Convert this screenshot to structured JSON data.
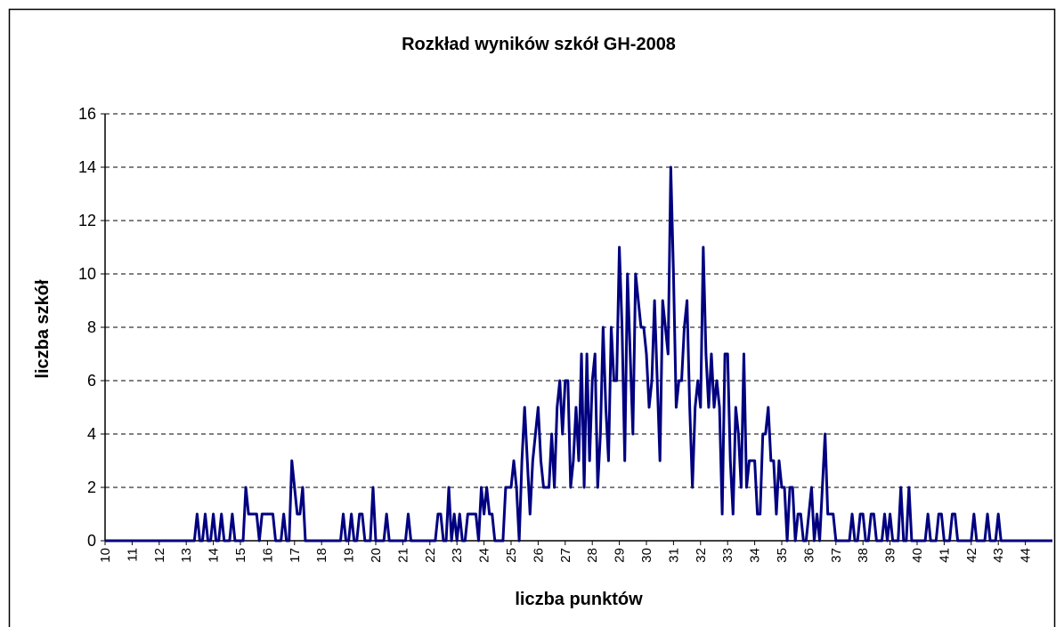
{
  "chart_data": {
    "type": "line",
    "title": "Rozkład wyników szkół GH-2008",
    "x_label": "liczba punktów",
    "y_label": "liczba szkół",
    "categories": [
      "10",
      null,
      null,
      null,
      null,
      null,
      null,
      null,
      null,
      null,
      "11",
      null,
      null,
      null,
      null,
      null,
      null,
      null,
      null,
      null,
      "12",
      null,
      null,
      null,
      null,
      null,
      null,
      null,
      null,
      null,
      "13",
      null,
      null,
      null,
      null,
      null,
      null,
      null,
      null,
      null,
      "14",
      null,
      null,
      null,
      null,
      null,
      null,
      null,
      null,
      null,
      "15",
      null,
      null,
      null,
      null,
      null,
      null,
      null,
      null,
      null,
      "16",
      null,
      null,
      null,
      null,
      null,
      null,
      null,
      null,
      null,
      "17",
      null,
      null,
      null,
      null,
      null,
      null,
      null,
      null,
      null,
      "18",
      null,
      null,
      null,
      null,
      null,
      null,
      null,
      null,
      null,
      "19",
      null,
      null,
      null,
      null,
      null,
      null,
      null,
      null,
      null,
      "20",
      null,
      null,
      null,
      null,
      null,
      null,
      null,
      null,
      null,
      "21",
      null,
      null,
      null,
      null,
      null,
      null,
      null,
      null,
      null,
      "22",
      null,
      null,
      null,
      null,
      null,
      null,
      null,
      null,
      null,
      "23",
      null,
      null,
      null,
      null,
      null,
      null,
      null,
      null,
      null,
      "24",
      null,
      null,
      null,
      null,
      null,
      null,
      null,
      null,
      null,
      "25",
      null,
      null,
      null,
      null,
      null,
      null,
      null,
      null,
      null,
      "26",
      null,
      null,
      null,
      null,
      null,
      null,
      null,
      null,
      null,
      "27",
      null,
      null,
      null,
      null,
      null,
      null,
      null,
      null,
      null,
      "28",
      null,
      null,
      null,
      null,
      null,
      null,
      null,
      null,
      null,
      "29",
      null,
      null,
      null,
      null,
      null,
      null,
      null,
      null,
      null,
      "30",
      null,
      null,
      null,
      null,
      null,
      null,
      null,
      null,
      null,
      "31",
      null,
      null,
      null,
      null,
      null,
      null,
      null,
      null,
      null,
      "32",
      null,
      null,
      null,
      null,
      null,
      null,
      null,
      null,
      null,
      "33",
      null,
      null,
      null,
      null,
      null,
      null,
      null,
      null,
      null,
      "34",
      null,
      null,
      null,
      null,
      null,
      null,
      null,
      null,
      null,
      "35",
      null,
      null,
      null,
      null,
      null,
      null,
      null,
      null,
      null,
      "36",
      null,
      null,
      null,
      null,
      null,
      null,
      null,
      null,
      null,
      "37",
      null,
      null,
      null,
      null,
      null,
      null,
      null,
      null,
      null,
      "38",
      null,
      null,
      null,
      null,
      null,
      null,
      null,
      null,
      null,
      "39",
      null,
      null,
      null,
      null,
      null,
      null,
      null,
      null,
      null,
      "40",
      null,
      null,
      null,
      null,
      null,
      null,
      null,
      null,
      null,
      "41",
      null,
      null,
      null,
      null,
      null,
      null,
      null,
      null,
      null,
      "42",
      null,
      null,
      null,
      null,
      null,
      null,
      null,
      null,
      null,
      "43",
      null,
      null,
      null,
      null,
      null,
      null,
      null,
      null,
      null,
      "44",
      null,
      null,
      null,
      null,
      null,
      null,
      null,
      null,
      null,
      null
    ],
    "series": [
      {
        "color": "#000080",
        "values": [
          0,
          0,
          0,
          0,
          0,
          0,
          0,
          0,
          0,
          0,
          0,
          0,
          0,
          0,
          0,
          0,
          0,
          0,
          0,
          0,
          0,
          0,
          0,
          0,
          0,
          0,
          0,
          0,
          0,
          0,
          0,
          0,
          0,
          0,
          1,
          0,
          0,
          1,
          0,
          0,
          1,
          0,
          0,
          1,
          0,
          0,
          0,
          1,
          0,
          0,
          0,
          0,
          2,
          1,
          1,
          1,
          1,
          0,
          1,
          1,
          1,
          1,
          1,
          0,
          0,
          0,
          1,
          0,
          0,
          3,
          2,
          1,
          1,
          2,
          0,
          0,
          0,
          0,
          0,
          0,
          0,
          0,
          0,
          0,
          0,
          0,
          0,
          0,
          1,
          0,
          0,
          1,
          0,
          0,
          1,
          1,
          0,
          0,
          0,
          2,
          0,
          0,
          0,
          0,
          1,
          0,
          0,
          0,
          0,
          0,
          0,
          0,
          1,
          0,
          0,
          0,
          0,
          0,
          0,
          0,
          0,
          0,
          0,
          1,
          1,
          0,
          0,
          2,
          0,
          1,
          0,
          1,
          0,
          0,
          1,
          1,
          1,
          1,
          0,
          2,
          1,
          2,
          1,
          1,
          0,
          0,
          0,
          0,
          2,
          2,
          2,
          3,
          2,
          0,
          3,
          5,
          3,
          1,
          3,
          4,
          5,
          3,
          2,
          2,
          2,
          4,
          2,
          5,
          6,
          4,
          6,
          6,
          2,
          3,
          5,
          3,
          7,
          2,
          7,
          3,
          6,
          7,
          2,
          4,
          8,
          5,
          3,
          8,
          6,
          6,
          11,
          8,
          3,
          10,
          7,
          4,
          10,
          9,
          8,
          8,
          7,
          5,
          6,
          9,
          6,
          3,
          9,
          8,
          7,
          14,
          10,
          5,
          6,
          6,
          8,
          9,
          5,
          2,
          5,
          6,
          5,
          11,
          7,
          5,
          7,
          5,
          6,
          5,
          1,
          7,
          7,
          3,
          1,
          5,
          4,
          2,
          7,
          2,
          3,
          3,
          3,
          1,
          1,
          4,
          4,
          5,
          3,
          3,
          1,
          3,
          2,
          2,
          0,
          2,
          2,
          0,
          1,
          1,
          0,
          0,
          1,
          2,
          0,
          1,
          0,
          2,
          4,
          1,
          1,
          1,
          0,
          0,
          0,
          0,
          0,
          0,
          1,
          0,
          0,
          1,
          1,
          0,
          0,
          1,
          1,
          0,
          0,
          0,
          1,
          0,
          1,
          0,
          0,
          0,
          2,
          0,
          0,
          2,
          0,
          0,
          0,
          0,
          0,
          0,
          1,
          0,
          0,
          0,
          1,
          1,
          0,
          0,
          0,
          1,
          1,
          0,
          0,
          0,
          0,
          0,
          0,
          1,
          0,
          0,
          0,
          0,
          1,
          0,
          0,
          0,
          1,
          0,
          0,
          0,
          0,
          0,
          0,
          0,
          0,
          0,
          0,
          0,
          0,
          0,
          0,
          0,
          0,
          0,
          0,
          0,
          0
        ]
      }
    ],
    "ylim": [
      0,
      16
    ],
    "yticks": [
      0,
      2,
      4,
      6,
      8,
      10,
      12,
      14,
      16
    ],
    "grid": true
  }
}
